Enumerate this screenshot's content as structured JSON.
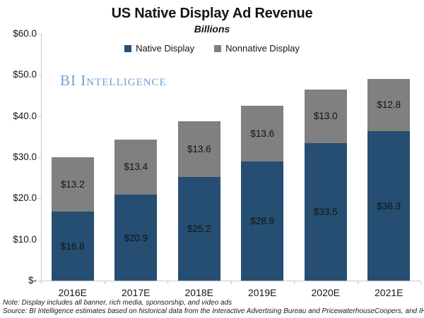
{
  "title": "US Native Display Ad Revenue",
  "subtitle": "Billions",
  "watermark": "BI Intelligence",
  "legend": [
    {
      "label": "Native Display",
      "color": "#254E72"
    },
    {
      "label": "Nonnative Display",
      "color": "#808080"
    }
  ],
  "chart_data": {
    "type": "bar",
    "stacked": true,
    "title": "US Native Display Ad Revenue",
    "subtitle": "Billions",
    "categories": [
      "2016E",
      "2017E",
      "2018E",
      "2019E",
      "2020E",
      "2021E"
    ],
    "series": [
      {
        "name": "Native Display",
        "color": "#254E72",
        "values": [
          16.8,
          20.9,
          25.2,
          28.9,
          33.5,
          36.3
        ]
      },
      {
        "name": "Nonnative Display",
        "color": "#808080",
        "values": [
          13.2,
          13.4,
          13.6,
          13.6,
          13.0,
          12.8
        ]
      }
    ],
    "yticks": [
      {
        "value": 60,
        "label": "$60.0"
      },
      {
        "value": 50,
        "label": "$50.0"
      },
      {
        "value": 40,
        "label": "$40.0"
      },
      {
        "value": 30,
        "label": "$30.0"
      },
      {
        "value": 20,
        "label": "$20.0"
      },
      {
        "value": 10,
        "label": "$10.0"
      },
      {
        "value": 0,
        "label": "$-"
      }
    ],
    "ylim": [
      0,
      60
    ],
    "data_label_prefix": "$",
    "grid": false,
    "legend_position": "top"
  },
  "notes": {
    "note": "Note: Display includes all banner, rich media, sponsorship, and video ads",
    "source": "Source: BI Intelligence estimates based on historical data from the Interactive Advertising Bureau and PricewaterhouseCoopers, and IHS"
  },
  "colors": {
    "native": "#254E72",
    "nonnative": "#808080",
    "axis": "#C4C9D1",
    "watermark_blue": "#6B9ED8"
  }
}
